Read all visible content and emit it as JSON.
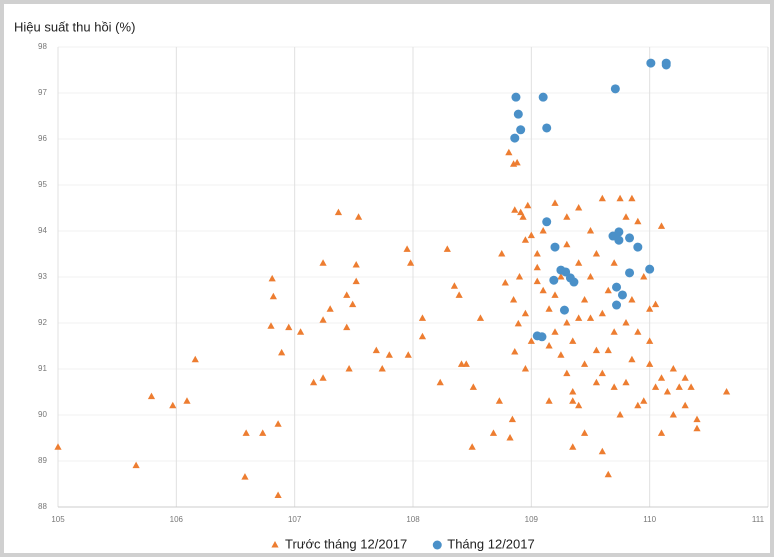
{
  "chart_data": {
    "type": "scatter",
    "title": "Hiệu suất thu hồi (%)",
    "xlim": [
      105,
      111
    ],
    "xticks": [
      105,
      106,
      107,
      108,
      109,
      110,
      111
    ],
    "ylim": [
      88,
      98
    ],
    "yticks": [
      88,
      89,
      90,
      91,
      92,
      93,
      94,
      95,
      96,
      97,
      98
    ],
    "grid": true,
    "series": [
      {
        "name": "Trước tháng 12/2017",
        "color": "#ed7d31",
        "marker": "triangle",
        "x": [
          105.0,
          105.66,
          105.79,
          105.97,
          106.09,
          106.16,
          106.59,
          106.73,
          106.86,
          106.58,
          106.86,
          106.81,
          106.82,
          106.8,
          106.89,
          106.95,
          107.05,
          107.16,
          107.24,
          107.24,
          107.24,
          107.3,
          107.37,
          107.44,
          107.49,
          107.44,
          107.54,
          107.52,
          107.52,
          107.46,
          107.69,
          107.74,
          107.8,
          107.95,
          107.98,
          107.96,
          108.08,
          108.08,
          108.23,
          108.29,
          108.35,
          108.39,
          108.41,
          108.45,
          108.5,
          108.51,
          108.57,
          108.68,
          108.73,
          108.75,
          108.81,
          108.85,
          108.88,
          108.86,
          108.91,
          108.97,
          108.93,
          108.78,
          108.85,
          108.89,
          108.86,
          108.84,
          108.82,
          109.0,
          109.05,
          109.1,
          109.15,
          109.2,
          109.25,
          109.3,
          109.35,
          109.4,
          109.1,
          109.2,
          109.3,
          109.4,
          109.5,
          109.6,
          109.55,
          109.5,
          109.45,
          109.4,
          109.35,
          109.45,
          109.55,
          109.6,
          109.65,
          109.7,
          109.6,
          109.65,
          109.7,
          109.75,
          109.8,
          109.85,
          109.9,
          109.95,
          110.0,
          109.9,
          109.85,
          109.8,
          109.9,
          109.95,
          110.0,
          110.05,
          110.1,
          110.05,
          110.1,
          110.15,
          110.2,
          110.25,
          110.3,
          110.35,
          110.1,
          110.4,
          110.4,
          110.65,
          109.6,
          109.65,
          109.35,
          109.15,
          108.95,
          109.0,
          108.95,
          108.9,
          109.05,
          109.25,
          109.3,
          109.4,
          109.5,
          109.55,
          109.7,
          109.75,
          109.8,
          109.85,
          110.0,
          109.2,
          109.15,
          109.3,
          108.95,
          109.05,
          109.35,
          109.45,
          110.2,
          110.3
        ],
        "values": [
          89.3,
          88.9,
          90.4,
          90.2,
          90.3,
          91.2,
          89.6,
          89.6,
          89.8,
          88.65,
          88.25,
          92.96,
          92.57,
          91.93,
          91.35,
          91.9,
          91.8,
          90.7,
          90.8,
          93.3,
          92.06,
          92.3,
          94.4,
          92.6,
          92.4,
          91.9,
          94.3,
          93.26,
          92.9,
          91.0,
          91.4,
          91.0,
          91.3,
          93.6,
          93.3,
          91.3,
          92.1,
          91.7,
          90.7,
          93.6,
          92.8,
          92.6,
          91.1,
          91.1,
          89.3,
          90.6,
          92.1,
          89.6,
          90.3,
          93.5,
          95.7,
          95.45,
          95.48,
          94.45,
          94.4,
          94.55,
          94.3,
          92.87,
          92.5,
          91.98,
          91.37,
          89.9,
          89.5,
          93.9,
          93.2,
          92.7,
          92.3,
          91.8,
          91.3,
          90.9,
          90.5,
          90.2,
          94.0,
          94.6,
          94.3,
          94.5,
          94.0,
          94.7,
          93.5,
          93.0,
          92.5,
          92.1,
          91.6,
          91.1,
          90.7,
          90.9,
          91.4,
          91.8,
          92.2,
          92.7,
          93.3,
          94.7,
          94.3,
          94.7,
          94.2,
          93.0,
          92.3,
          91.8,
          91.2,
          90.7,
          90.2,
          90.3,
          91.6,
          92.4,
          94.1,
          90.6,
          90.8,
          90.5,
          91.0,
          90.6,
          90.8,
          90.6,
          89.6,
          89.9,
          89.7,
          90.5,
          89.2,
          88.7,
          89.3,
          90.3,
          91.0,
          91.6,
          92.2,
          93.0,
          93.5,
          93.0,
          93.7,
          93.3,
          92.1,
          91.4,
          90.6,
          90.0,
          92.0,
          92.5,
          91.1,
          92.6,
          91.5,
          92.0,
          93.8,
          92.9,
          90.3,
          89.6,
          90.0,
          90.2
        ]
      },
      {
        "name": "Tháng 12/2017",
        "color": "#4a90c8",
        "marker": "circle",
        "x": [
          108.87,
          109.1,
          108.89,
          108.91,
          109.13,
          108.86,
          109.71,
          110.01,
          110.14,
          110.14,
          109.13,
          109.2,
          109.25,
          109.29,
          109.19,
          109.36,
          109.28,
          109.05,
          109.09,
          109.69,
          109.74,
          109.74,
          109.83,
          109.9,
          110.0,
          109.83,
          109.72,
          109.77,
          109.72,
          109.33
        ],
        "values": [
          96.91,
          96.91,
          96.54,
          96.2,
          96.24,
          96.02,
          97.09,
          97.65,
          97.65,
          97.61,
          94.2,
          93.65,
          93.15,
          93.11,
          92.93,
          92.89,
          92.28,
          91.72,
          91.7,
          93.89,
          93.8,
          93.98,
          93.85,
          93.65,
          93.17,
          93.09,
          92.78,
          92.61,
          92.39,
          92.98
        ]
      }
    ]
  }
}
